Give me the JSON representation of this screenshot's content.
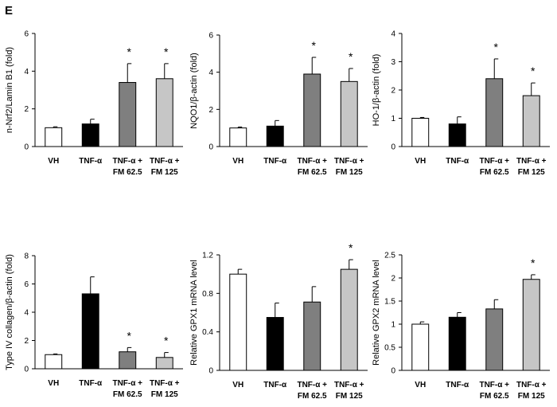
{
  "figure": {
    "panel_label": "E"
  },
  "colors": {
    "VH": "#ffffff",
    "TNF": "#000000",
    "FM62.5": "#7f7f7f",
    "FM125": "#c6c6c6"
  },
  "chart_data": [
    {
      "type": "bar",
      "ylabel": "n-Nrf2/Lamin B1 (fold)",
      "ylim": [
        0,
        6
      ],
      "yticks": [
        "0",
        "2",
        "4",
        "6"
      ],
      "categories": [
        [
          "VH"
        ],
        [
          "TNF-α"
        ],
        [
          "TNF-α +",
          "FM 62.5"
        ],
        [
          "TNF-α +",
          "FM 125"
        ]
      ],
      "values": [
        1.0,
        1.2,
        3.4,
        3.6
      ],
      "errors": [
        0.05,
        0.25,
        1.0,
        0.8
      ],
      "significance": [
        "",
        "",
        "*",
        "*"
      ]
    },
    {
      "type": "bar",
      "ylabel": "NQO1/β-actin (fold)",
      "ylim": [
        0,
        6
      ],
      "yticks": [
        "0",
        "2",
        "4",
        "6"
      ],
      "categories": [
        [
          "VH"
        ],
        [
          "TNF-α"
        ],
        [
          "TNF-α +",
          "FM 62.5"
        ],
        [
          "TNF-α +",
          "FM 125"
        ]
      ],
      "values": [
        1.0,
        1.1,
        3.9,
        3.5
      ],
      "errors": [
        0.05,
        0.3,
        0.9,
        0.7
      ],
      "significance": [
        "",
        "",
        "*",
        "*"
      ]
    },
    {
      "type": "bar",
      "ylabel": "HO-1/β-actin (fold)",
      "ylim": [
        0,
        4
      ],
      "yticks": [
        "0",
        "1",
        "2",
        "3",
        "4"
      ],
      "categories": [
        [
          "VH"
        ],
        [
          "TNF-α"
        ],
        [
          "TNF-α +",
          "FM 62.5"
        ],
        [
          "TNF-α +",
          "FM 125"
        ]
      ],
      "values": [
        1.0,
        0.8,
        2.4,
        1.8
      ],
      "errors": [
        0.03,
        0.25,
        0.7,
        0.45
      ],
      "significance": [
        "",
        "",
        "*",
        "*"
      ]
    },
    {
      "type": "bar",
      "ylabel": "Type IV collagen/β-actin (fold)",
      "ylim": [
        0,
        8
      ],
      "yticks": [
        "0",
        "2",
        "4",
        "6",
        "8"
      ],
      "categories": [
        [
          "VH"
        ],
        [
          "TNF-α"
        ],
        [
          "TNF-α +",
          "FM 62.5"
        ],
        [
          "TNF-α +",
          "FM 125"
        ]
      ],
      "values": [
        1.0,
        5.3,
        1.2,
        0.8
      ],
      "errors": [
        0.05,
        1.2,
        0.3,
        0.35
      ],
      "significance": [
        "",
        "",
        "*",
        "*"
      ]
    },
    {
      "type": "bar",
      "ylabel": "Relative GPX1 mRNA level",
      "ylim": [
        0,
        1.2
      ],
      "yticks": [
        "0",
        "0.4",
        "0.8",
        "1.2"
      ],
      "categories": [
        [
          "VH"
        ],
        [
          "TNF-α"
        ],
        [
          "TNF-α +",
          "FM 62.5"
        ],
        [
          "TNF-α +",
          "FM 125"
        ]
      ],
      "values": [
        1.0,
        0.55,
        0.71,
        1.05
      ],
      "errors": [
        0.05,
        0.15,
        0.16,
        0.1
      ],
      "significance": [
        "",
        "",
        "",
        "*"
      ]
    },
    {
      "type": "bar",
      "ylabel": "Relative GPX2 mRNA level",
      "ylim": [
        0,
        2.5
      ],
      "yticks": [
        "0",
        "0.5",
        "1",
        "1.5",
        "2",
        "2.5"
      ],
      "categories": [
        [
          "VH"
        ],
        [
          "TNF-α"
        ],
        [
          "TNF-α +",
          "FM 62.5"
        ],
        [
          "TNF-α +",
          "FM 125"
        ]
      ],
      "values": [
        1.0,
        1.15,
        1.33,
        1.97
      ],
      "errors": [
        0.05,
        0.1,
        0.2,
        0.1
      ],
      "significance": [
        "",
        "",
        "",
        "*"
      ]
    }
  ]
}
